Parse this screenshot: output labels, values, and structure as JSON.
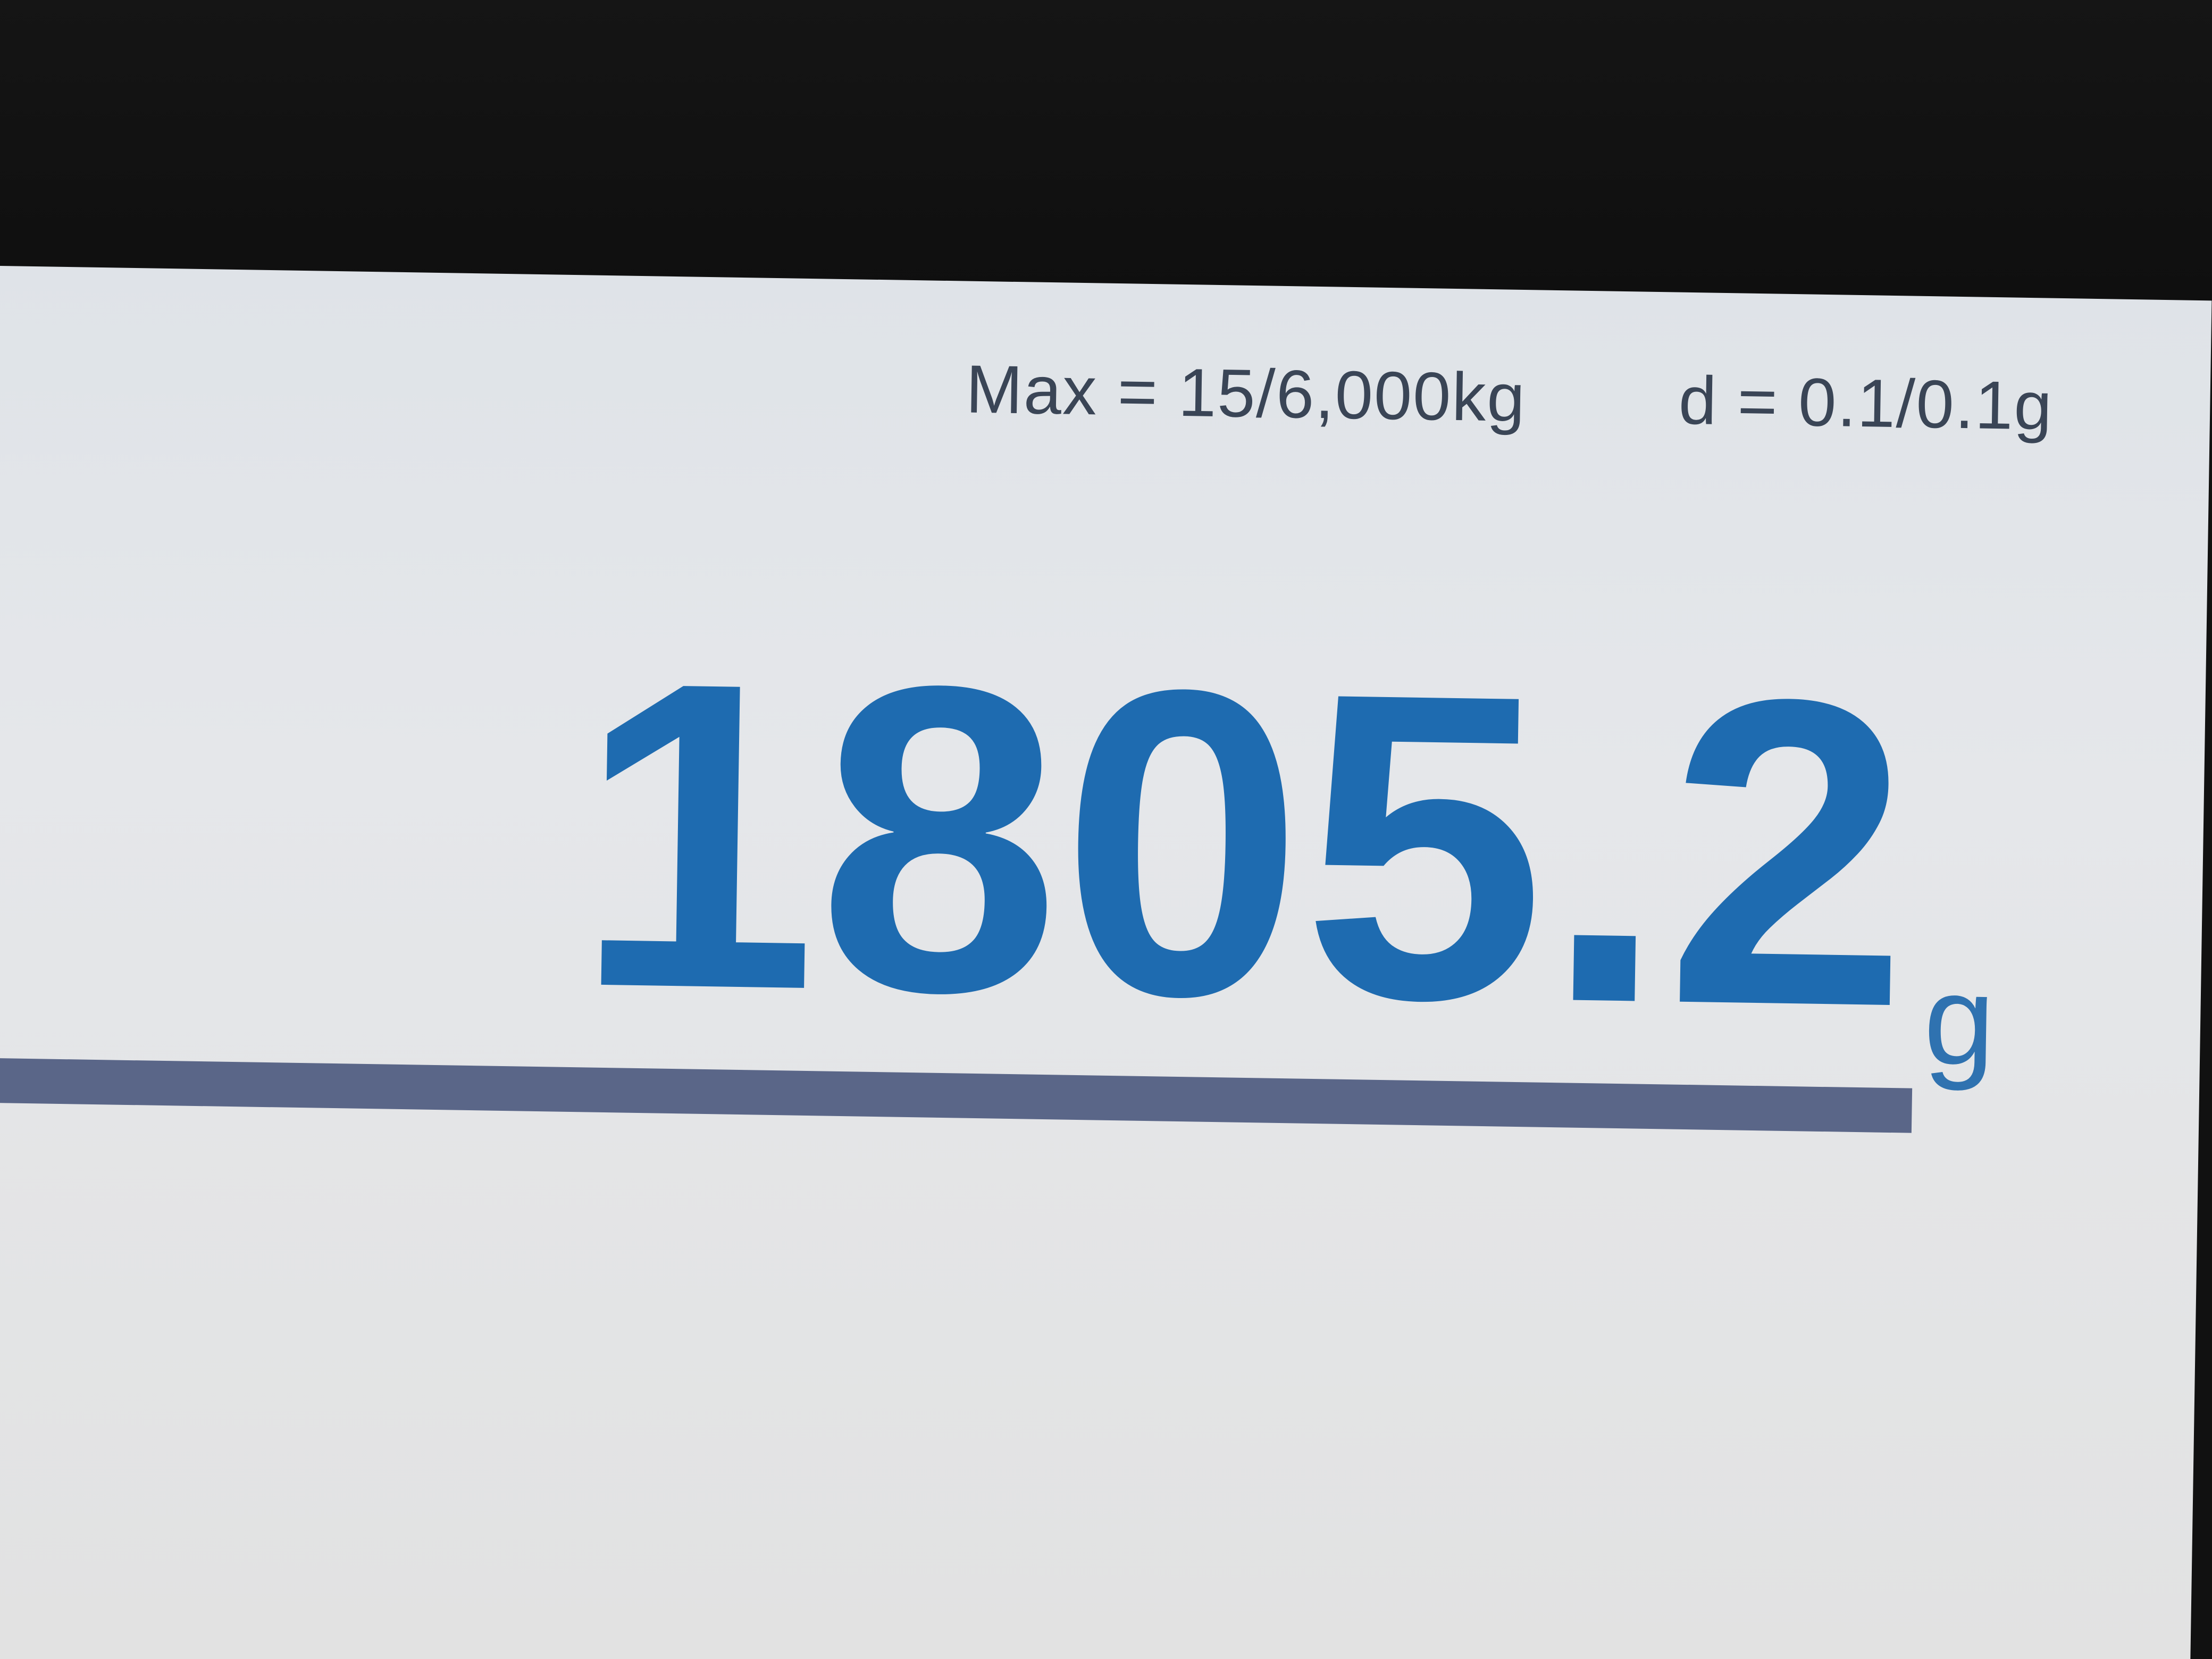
{
  "scale_display": {
    "max_capacity": "Max = 15/6,000kg",
    "division": "d = 0.1/0.1g",
    "weight_value": "1805.2",
    "weight_unit": "g"
  },
  "colors": {
    "reading": "#1e6bb0",
    "bar": "#5a6688",
    "display_bg": "#e3e5e8"
  }
}
